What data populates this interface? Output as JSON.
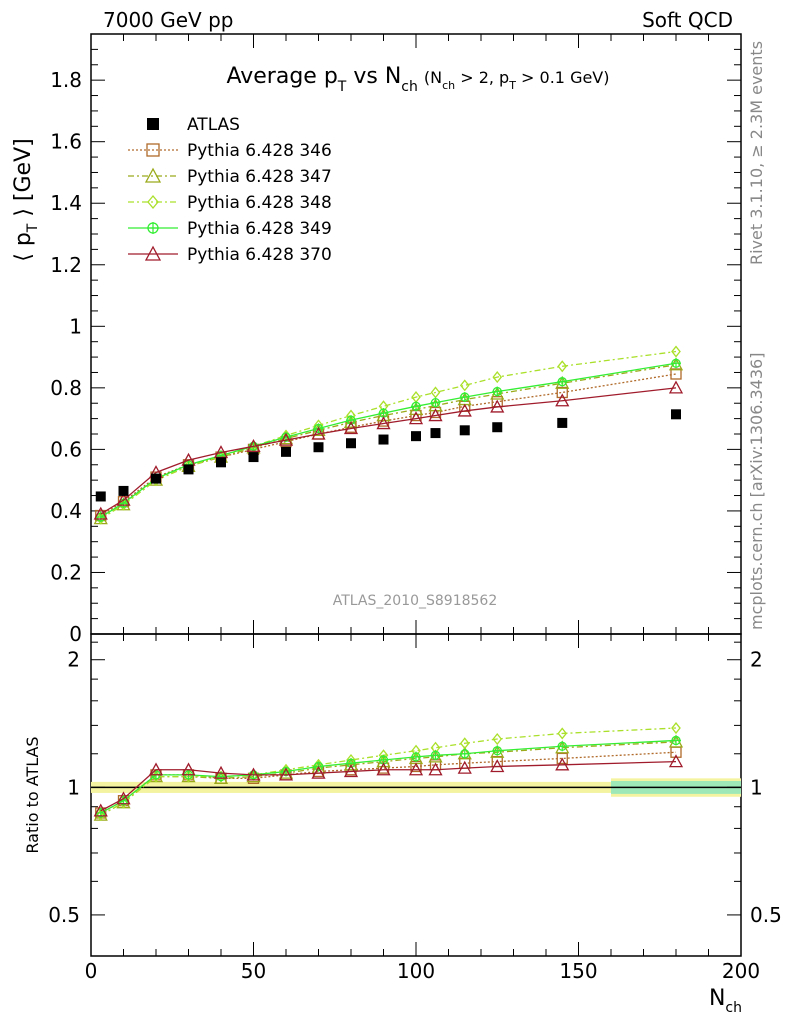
{
  "header": {
    "left": "7000 GeV pp",
    "right": "Soft QCD"
  },
  "side_text": {
    "rivet": "Rivet 3.1.10, ≥ 2.3M events",
    "mcplots": "mcplots.cern.ch [arXiv:1306.3436]"
  },
  "analysis_id": "ATLAS_2010_S8918562",
  "chart_data": {
    "type": "scatter",
    "title": "Average p_T vs N_ch (N_ch > 2, p_T > 0.1 GeV)",
    "title_parts": {
      "main": "Average p",
      "sub1": "T",
      "mid": " vs N",
      "sub2": "ch",
      "cond": "(N",
      "cond_sub1": "ch",
      "cond_mid": " > 2, p",
      "cond_sub2": "T",
      "cond_end": " > 0.1 GeV)"
    },
    "ylabel": "⟨ p_T ⟩ [GeV]",
    "ylabel_parts": {
      "pre": "⟨ p",
      "sub": "T",
      "post": " ⟩ [GeV]"
    },
    "xlabel": "N_ch",
    "xlabel_parts": {
      "main": "N",
      "sub": "ch"
    },
    "ratio_ylabel": "Ratio to ATLAS",
    "xlim": [
      0,
      200
    ],
    "ylim": [
      0,
      1.95
    ],
    "ratio_ylim": [
      0.4,
      2.3
    ],
    "x_ticks": [
      "0",
      "50",
      "100",
      "150",
      "200"
    ],
    "y_ticks": [
      "0",
      "0.2",
      "0.4",
      "0.6",
      "0.8",
      "1",
      "1.2",
      "1.4",
      "1.6",
      "1.8"
    ],
    "ratio_ticks": [
      "0.5",
      "1",
      "2"
    ],
    "grid": false,
    "legend_position": "top-left",
    "series": [
      {
        "name": "ATLAS",
        "color": "#000000",
        "marker": "filled-square",
        "line": "none",
        "x": [
          3,
          10,
          20,
          30,
          40,
          50,
          60,
          70,
          80,
          90,
          100,
          106,
          115,
          125,
          145,
          180
        ],
        "y": [
          0.447,
          0.465,
          0.505,
          0.535,
          0.558,
          0.575,
          0.592,
          0.607,
          0.62,
          0.632,
          0.643,
          0.653,
          0.662,
          0.672,
          0.686,
          0.714
        ],
        "ratio": [
          1.0,
          1.0,
          1.0,
          1.0,
          1.0,
          1.0,
          1.0,
          1.0,
          1.0,
          1.0,
          1.0,
          1.0,
          1.0,
          1.0,
          1.0,
          1.0
        ]
      },
      {
        "name": "Pythia 6.428 346",
        "color": "#b06a2a",
        "marker": "open-square",
        "line": "dotted",
        "x": [
          3,
          10,
          20,
          30,
          40,
          50,
          60,
          70,
          80,
          90,
          100,
          106,
          115,
          125,
          145,
          180
        ],
        "y": [
          0.385,
          0.43,
          0.51,
          0.55,
          0.575,
          0.6,
          0.625,
          0.65,
          0.672,
          0.692,
          0.71,
          0.72,
          0.74,
          0.755,
          0.785,
          0.845
        ],
        "ratio": [
          0.87,
          0.93,
          1.07,
          1.07,
          1.05,
          1.05,
          1.07,
          1.09,
          1.1,
          1.11,
          1.12,
          1.13,
          1.14,
          1.15,
          1.17,
          1.21
        ]
      },
      {
        "name": "Pythia 6.428 347",
        "color": "#9aaa1a",
        "marker": "open-triangle",
        "line": "dash-dot",
        "x": [
          3,
          10,
          20,
          30,
          40,
          50,
          60,
          70,
          80,
          90,
          100,
          106,
          115,
          125,
          145,
          180
        ],
        "y": [
          0.375,
          0.42,
          0.5,
          0.545,
          0.575,
          0.605,
          0.635,
          0.662,
          0.688,
          0.71,
          0.73,
          0.742,
          0.762,
          0.78,
          0.815,
          0.875
        ],
        "ratio": [
          0.86,
          0.92,
          1.06,
          1.06,
          1.05,
          1.06,
          1.08,
          1.11,
          1.13,
          1.15,
          1.17,
          1.18,
          1.2,
          1.21,
          1.24,
          1.28
        ]
      },
      {
        "name": "Pythia 6.428 348",
        "color": "#aae02a",
        "marker": "open-diamond",
        "line": "dash-dot",
        "x": [
          3,
          10,
          20,
          30,
          40,
          50,
          60,
          70,
          80,
          90,
          100,
          106,
          115,
          125,
          145,
          180
        ],
        "y": [
          0.375,
          0.42,
          0.5,
          0.545,
          0.578,
          0.61,
          0.645,
          0.678,
          0.71,
          0.74,
          0.77,
          0.785,
          0.808,
          0.835,
          0.87,
          0.918
        ],
        "ratio": [
          0.86,
          0.92,
          1.06,
          1.06,
          1.06,
          1.07,
          1.1,
          1.13,
          1.16,
          1.19,
          1.22,
          1.24,
          1.27,
          1.3,
          1.34,
          1.38
        ]
      },
      {
        "name": "Pythia 6.428 349",
        "color": "#33ee33",
        "marker": "open-circle-cross",
        "line": "solid",
        "x": [
          3,
          10,
          20,
          30,
          40,
          50,
          60,
          70,
          80,
          90,
          100,
          106,
          115,
          125,
          145,
          180
        ],
        "y": [
          0.38,
          0.425,
          0.505,
          0.55,
          0.58,
          0.61,
          0.64,
          0.668,
          0.695,
          0.718,
          0.74,
          0.752,
          0.77,
          0.788,
          0.82,
          0.88
        ],
        "ratio": [
          0.87,
          0.93,
          1.07,
          1.07,
          1.06,
          1.07,
          1.09,
          1.12,
          1.14,
          1.16,
          1.18,
          1.19,
          1.2,
          1.22,
          1.25,
          1.29
        ]
      },
      {
        "name": "Pythia 6.428 370",
        "color": "#a01c2c",
        "marker": "open-triangle",
        "line": "solid",
        "x": [
          3,
          10,
          20,
          30,
          40,
          50,
          60,
          70,
          80,
          90,
          100,
          106,
          115,
          125,
          145,
          180
        ],
        "y": [
          0.39,
          0.435,
          0.525,
          0.565,
          0.59,
          0.61,
          0.63,
          0.65,
          0.668,
          0.684,
          0.7,
          0.71,
          0.725,
          0.738,
          0.758,
          0.8
        ],
        "ratio": [
          0.88,
          0.94,
          1.1,
          1.1,
          1.08,
          1.07,
          1.07,
          1.08,
          1.09,
          1.1,
          1.1,
          1.1,
          1.11,
          1.12,
          1.13,
          1.15
        ]
      }
    ]
  }
}
